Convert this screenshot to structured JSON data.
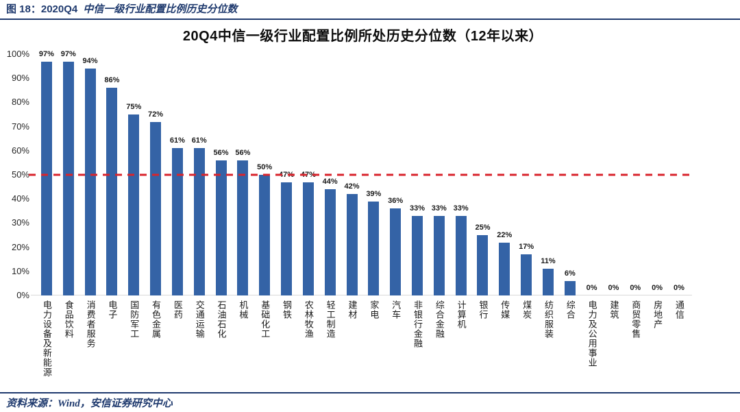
{
  "header": {
    "figure_label": "图 18：2020Q4",
    "figure_title": "中信一级行业配置比例历史分位数"
  },
  "footer": {
    "source_text": "资料来源：Wind，安信证券研究中心"
  },
  "colors": {
    "navy_accent": "#1f3a6e",
    "bar_blue": "#3463a6",
    "reference_red": "#d8242c",
    "baseline_gray": "#d9d9d9"
  },
  "chart_data": {
    "type": "bar",
    "title": "20Q4中信一级行业配置比例所处历史分位数（12年以来）",
    "categories": [
      "电力设备及新能源",
      "食品饮料",
      "消费者服务",
      "电子",
      "国防军工",
      "有色金属",
      "医药",
      "交通运输",
      "石油石化",
      "机械",
      "基础化工",
      "钢铁",
      "农林牧渔",
      "轻工制造",
      "建材",
      "家电",
      "汽车",
      "非银行金融",
      "综合金融",
      "计算机",
      "银行",
      "传媒",
      "煤炭",
      "纺织服装",
      "综合",
      "电力及公用事业",
      "建筑",
      "商贸零售",
      "房地产",
      "通信"
    ],
    "values": [
      97,
      97,
      94,
      86,
      75,
      72,
      61,
      61,
      56,
      56,
      50,
      47,
      47,
      44,
      42,
      39,
      36,
      33,
      33,
      33,
      25,
      22,
      17,
      11,
      6,
      0,
      0,
      0,
      0,
      0
    ],
    "value_suffix": "%",
    "xlabel": "",
    "ylabel": "",
    "ylim": [
      0,
      100
    ],
    "yticks": [
      "0%",
      "10%",
      "20%",
      "30%",
      "40%",
      "50%",
      "60%",
      "70%",
      "80%",
      "90%",
      "100%"
    ],
    "grid": false,
    "legend": false,
    "reference_line": {
      "value": 50,
      "style": "dashed",
      "color": "#d8242c"
    },
    "bar_color": "#3463a6"
  }
}
